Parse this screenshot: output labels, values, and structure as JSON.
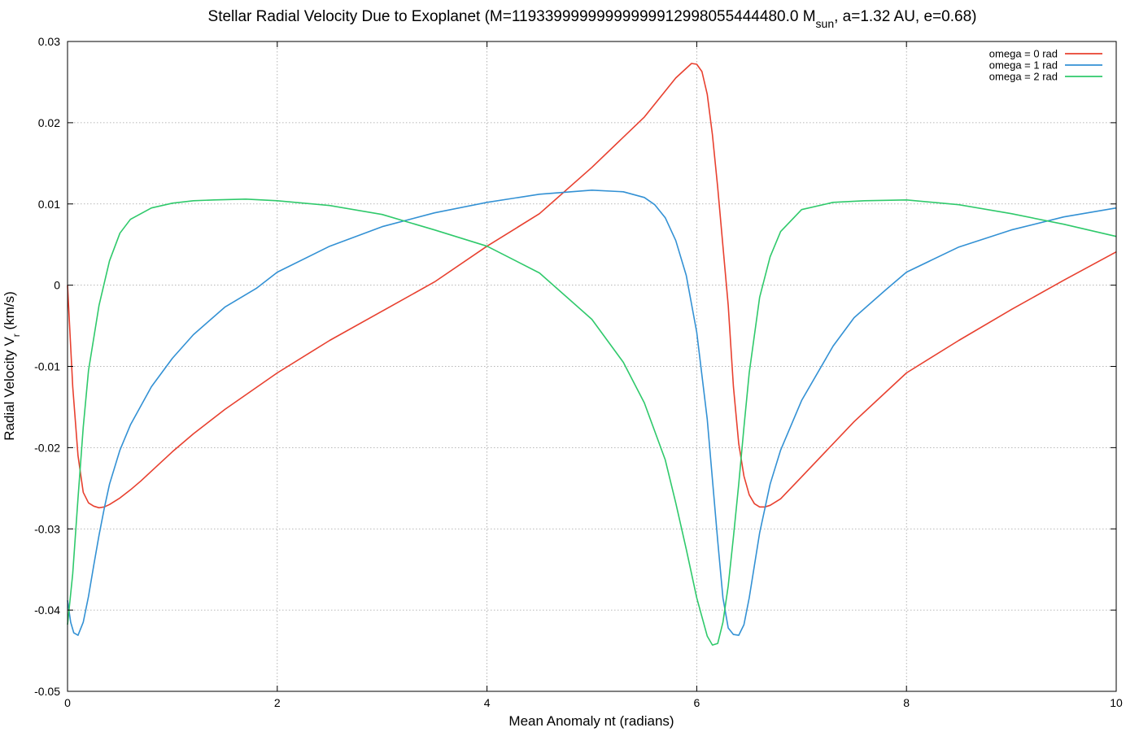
{
  "chart_data": {
    "type": "line",
    "title": {
      "main": "Stellar Radial Velocity Due to Exoplanet (M=11933999999999999912998055444480.0 M",
      "sub": "sun",
      "tail": ", a=1.32 AU, e=0.68)"
    },
    "xlabel": "Mean Anomaly nt (radians)",
    "ylabel": {
      "main": "Radial Velocity V",
      "sub": "r",
      "tail": " (km/s)"
    },
    "xlim": [
      0,
      10
    ],
    "ylim": [
      -0.05,
      0.03
    ],
    "xticks": [
      0,
      2,
      4,
      6,
      8,
      10
    ],
    "xtick_labels": [
      "0",
      "2",
      "4",
      "6",
      "8",
      "10"
    ],
    "yticks": [
      -0.05,
      -0.04,
      -0.03,
      -0.02,
      -0.01,
      0,
      0.01,
      0.02,
      0.03
    ],
    "ytick_labels": [
      "-0.05",
      "-0.04",
      "-0.03",
      "-0.02",
      "-0.01",
      "0",
      "0.01",
      "0.02",
      "0.03"
    ],
    "grid": true,
    "legend_position": "top-right",
    "series": [
      {
        "name": "omega = 0 rad",
        "color": "#e8402f",
        "x": [
          0,
          0.05,
          0.1,
          0.15,
          0.2,
          0.25,
          0.3,
          0.35,
          0.4,
          0.5,
          0.6,
          0.7,
          0.8,
          1.0,
          1.2,
          1.5,
          2.0,
          2.5,
          3.0,
          3.5,
          4.0,
          4.5,
          5.0,
          5.5,
          5.8,
          5.95,
          6.0,
          6.05,
          6.1,
          6.15,
          6.2,
          6.25,
          6.3,
          6.35,
          6.4,
          6.45,
          6.5,
          6.55,
          6.6,
          6.65,
          6.7,
          6.8,
          7.0,
          7.5,
          8.0,
          8.5,
          9.0,
          9.5,
          10.0
        ],
        "values": [
          0.0,
          -0.0125,
          -0.021,
          -0.0255,
          -0.0268,
          -0.0272,
          -0.0274,
          -0.0273,
          -0.027,
          -0.0262,
          -0.0252,
          -0.0241,
          -0.0229,
          -0.0205,
          -0.0183,
          -0.0153,
          -0.0108,
          -0.0068,
          -0.0032,
          0.0004,
          0.0048,
          0.0088,
          0.0145,
          0.0207,
          0.0255,
          0.0273,
          0.0272,
          0.0263,
          0.0235,
          0.0185,
          0.012,
          0.0048,
          -0.0025,
          -0.0125,
          -0.0195,
          -0.0235,
          -0.0258,
          -0.0269,
          -0.0273,
          -0.0273,
          -0.0271,
          -0.0263,
          -0.0236,
          -0.0168,
          -0.0108,
          -0.0068,
          -0.003,
          0.0006,
          0.0041
        ]
      },
      {
        "name": "omega = 1 rad",
        "color": "#3391d4",
        "x": [
          0,
          0.03,
          0.06,
          0.1,
          0.15,
          0.2,
          0.25,
          0.3,
          0.35,
          0.4,
          0.5,
          0.6,
          0.8,
          1.0,
          1.2,
          1.5,
          1.8,
          2.0,
          2.5,
          3.0,
          3.5,
          4.0,
          4.5,
          5.0,
          5.3,
          5.5,
          5.6,
          5.7,
          5.8,
          5.9,
          6.0,
          6.1,
          6.2,
          6.25,
          6.3,
          6.35,
          6.4,
          6.45,
          6.5,
          6.6,
          6.7,
          6.8,
          7.0,
          7.3,
          7.5,
          7.8,
          8.0,
          8.5,
          9.0,
          9.5,
          10.0
        ],
        "values": [
          -0.0388,
          -0.0415,
          -0.0428,
          -0.0431,
          -0.0415,
          -0.0383,
          -0.0345,
          -0.0308,
          -0.0275,
          -0.0245,
          -0.0203,
          -0.0172,
          -0.0125,
          -0.009,
          -0.0061,
          -0.0027,
          -0.0004,
          0.0016,
          0.0048,
          0.0072,
          0.0089,
          0.0102,
          0.0112,
          0.0117,
          0.0115,
          0.0108,
          0.0099,
          0.0083,
          0.0055,
          0.0012,
          -0.0058,
          -0.0165,
          -0.0315,
          -0.0385,
          -0.0422,
          -0.043,
          -0.0431,
          -0.0418,
          -0.0385,
          -0.0305,
          -0.0245,
          -0.0203,
          -0.0142,
          -0.0075,
          -0.004,
          -0.0006,
          0.0016,
          0.0047,
          0.0068,
          0.0084,
          0.0095
        ]
      },
      {
        "name": "omega = 2 rad",
        "color": "#2fc96b",
        "x": [
          0,
          0.05,
          0.1,
          0.15,
          0.2,
          0.3,
          0.4,
          0.5,
          0.6,
          0.8,
          1.0,
          1.2,
          1.4,
          1.7,
          2.0,
          2.5,
          3.0,
          3.5,
          4.0,
          4.5,
          5.0,
          5.3,
          5.5,
          5.7,
          5.8,
          5.9,
          6.0,
          6.1,
          6.15,
          6.2,
          6.25,
          6.3,
          6.35,
          6.4,
          6.45,
          6.5,
          6.6,
          6.7,
          6.8,
          7.0,
          7.3,
          7.6,
          8.0,
          8.5,
          9.0,
          9.5,
          10.0
        ],
        "values": [
          -0.0418,
          -0.0355,
          -0.0262,
          -0.0175,
          -0.0105,
          -0.0025,
          0.003,
          0.0064,
          0.0081,
          0.0095,
          0.0101,
          0.0104,
          0.0105,
          0.0106,
          0.0104,
          0.0098,
          0.0087,
          0.0068,
          0.0048,
          0.0015,
          -0.0042,
          -0.0095,
          -0.0145,
          -0.0215,
          -0.0268,
          -0.0325,
          -0.0385,
          -0.0432,
          -0.0443,
          -0.0441,
          -0.0415,
          -0.037,
          -0.031,
          -0.0245,
          -0.0175,
          -0.0108,
          -0.0015,
          0.0035,
          0.0066,
          0.0093,
          0.0102,
          0.0104,
          0.0105,
          0.0099,
          0.0088,
          0.0075,
          0.006
        ]
      }
    ]
  }
}
